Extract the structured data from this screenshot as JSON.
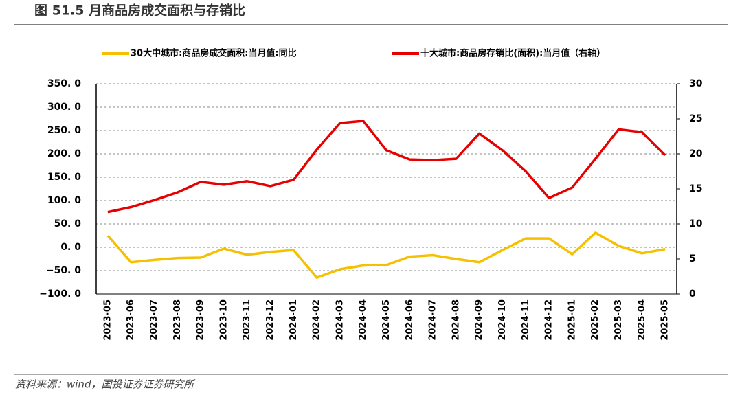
{
  "chart_data": {
    "type": "line",
    "title": "图 51.5 月商品房成交面积与存销比",
    "source": "资料来源：wind，国投证券证券研究所",
    "categories": [
      "2023-05",
      "2023-06",
      "2023-07",
      "2023-08",
      "2023-09",
      "2023-10",
      "2023-11",
      "2023-12",
      "2024-01",
      "2024-02",
      "2024-03",
      "2024-04",
      "2024-05",
      "2024-06",
      "2024-07",
      "2024-08",
      "2024-09",
      "2024-10",
      "2024-11",
      "2024-12",
      "2025-01",
      "2025-02",
      "2025-03",
      "2025-04",
      "2025-05"
    ],
    "series": [
      {
        "name": "30大中城市:商品房成交面积:当月值:同比",
        "color": "#f5c000",
        "axis": "y",
        "values": [
          25,
          -32,
          -27,
          -23,
          -22,
          -3,
          -16,
          -10,
          -6,
          -65,
          -47,
          -39,
          -38,
          -20,
          -17,
          -25,
          -32,
          -6,
          19,
          19,
          -15,
          31,
          3,
          -13,
          -4
        ]
      },
      {
        "name": "十大城市:商品房存销比(面积):当月值（右轴）",
        "color": "#e60000",
        "axis": "y2",
        "values": [
          11.7,
          12.4,
          13.4,
          14.5,
          16.0,
          15.6,
          16.1,
          15.4,
          16.3,
          20.6,
          24.4,
          24.7,
          20.5,
          19.2,
          19.1,
          19.3,
          22.9,
          20.5,
          17.5,
          13.7,
          15.2,
          19.3,
          23.5,
          23.1,
          19.8
        ]
      }
    ],
    "ylim": [
      -100,
      350
    ],
    "yticks": [
      {
        "value": -100,
        "label": "−100. 0"
      },
      {
        "value": -50,
        "label": "−50. 0"
      },
      {
        "value": 0,
        "label": "0. 0"
      },
      {
        "value": 50,
        "label": "50. 0"
      },
      {
        "value": 100,
        "label": "100. 0"
      },
      {
        "value": 150,
        "label": "150. 0"
      },
      {
        "value": 200,
        "label": "200. 0"
      },
      {
        "value": 250,
        "label": "250. 0"
      },
      {
        "value": 300,
        "label": "300. 0"
      },
      {
        "value": 350,
        "label": "350. 0"
      }
    ],
    "y2lim": [
      0,
      30
    ],
    "y2ticks": [
      0,
      5,
      10,
      15,
      20,
      25,
      30
    ],
    "grid": true,
    "legend": "top"
  }
}
